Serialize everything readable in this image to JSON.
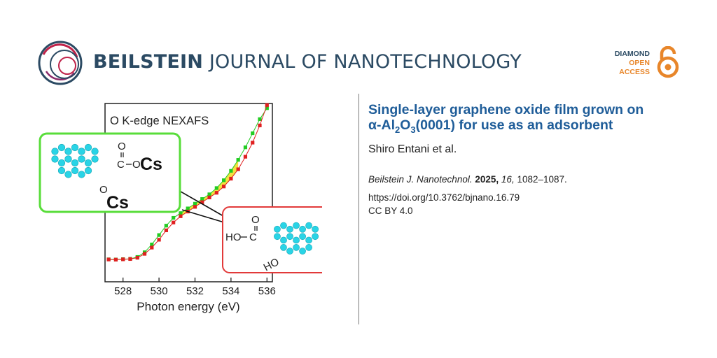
{
  "header": {
    "journal_bold": "BEILSTEIN",
    "journal_rest": "JOURNAL OF NANOTECHNOLOGY",
    "badge": {
      "line1": "DIAMOND",
      "line2": "OPEN",
      "line3": "ACCESS",
      "icon": "open-access-lock-icon"
    }
  },
  "article": {
    "title_line1": "Single-layer graphene oxide film grown on",
    "title_line2_parts": [
      "α-Al",
      "2",
      "O",
      "3",
      "(0001) for use as an adsorbent"
    ],
    "authors": "Shiro Entani et al.",
    "citation": {
      "journal": "Beilstein J. Nanotechnol.",
      "year": "2025,",
      "volume": "16,",
      "pages": "1082–1087."
    },
    "doi": "https://doi.org/10.3762/bjnano.16.79",
    "license": "CC BY 4.0"
  },
  "chart_data": {
    "type": "scatter",
    "title": "O K-edge NEXAFS",
    "xlabel": "Photon energy (eV)",
    "ylabel": "",
    "xlim": [
      527,
      536.3
    ],
    "ylim": [
      0,
      1
    ],
    "xticks": [
      "528",
      "530",
      "532",
      "534",
      "536"
    ],
    "grid": false,
    "colors": {
      "green": "#22cc22",
      "red": "#e02020",
      "overlap": "#f2d600"
    },
    "series": [
      {
        "x": [
          527.2,
          527.6,
          528.0,
          528.4,
          528.8,
          529.2,
          529.6,
          530.0,
          530.4,
          530.8,
          531.2,
          531.6,
          532.0,
          532.4,
          532.8,
          533.2,
          533.6,
          534.0,
          534.4,
          534.8,
          535.2,
          535.6,
          536.0
        ],
        "y": [
          0.005,
          0.004,
          0.006,
          0.008,
          0.02,
          0.05,
          0.1,
          0.16,
          0.22,
          0.27,
          0.3,
          0.33,
          0.36,
          0.39,
          0.42,
          0.46,
          0.51,
          0.57,
          0.64,
          0.72,
          0.81,
          0.9,
          0.97
        ]
      },
      {
        "x": [
          527.2,
          527.6,
          528.0,
          528.4,
          528.8,
          529.2,
          529.6,
          530.0,
          530.4,
          530.8,
          531.2,
          531.6,
          532.0,
          532.4,
          532.8,
          533.2,
          533.6,
          534.0,
          534.4,
          534.8,
          535.2,
          535.6,
          536.0
        ],
        "y": [
          0.004,
          0.003,
          0.005,
          0.007,
          0.015,
          0.04,
          0.08,
          0.13,
          0.19,
          0.24,
          0.28,
          0.31,
          0.34,
          0.37,
          0.4,
          0.43,
          0.47,
          0.52,
          0.58,
          0.66,
          0.75,
          0.86,
          0.99
        ]
      }
    ]
  },
  "figure": {
    "cs_structure": {
      "carboxyl_o": "O",
      "carboxyl_c": "C",
      "carboxyl_o2": "O",
      "cs1": "Cs",
      "o_lower": "O",
      "cs2": "Cs"
    },
    "oh_structure": {
      "oh_left": "HO",
      "carboxyl_c": "C",
      "carboxyl_o": "O",
      "oh_lower": "HO"
    }
  }
}
